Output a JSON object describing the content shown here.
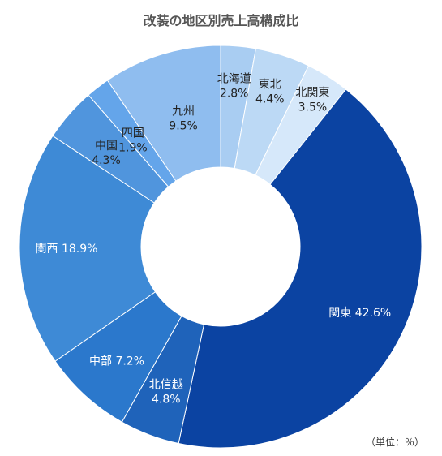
{
  "chart_data": {
    "type": "pie",
    "title": "改装の地区別売上高構成比",
    "unit_note": "（単位：％）",
    "donut": true,
    "slices": [
      {
        "label": "北海道",
        "value": 2.8,
        "value_text": "2.8%",
        "color": "#a9cdf2"
      },
      {
        "label": "東北",
        "value": 4.4,
        "value_text": "4.4%",
        "color": "#bcd9f5"
      },
      {
        "label": "北関東",
        "value": 3.5,
        "value_text": "3.5%",
        "color": "#d6e8fa"
      },
      {
        "label": "関東",
        "value": 42.6,
        "value_text": "42.6%",
        "color": "#0b43a2"
      },
      {
        "label": "北信越",
        "value": 4.8,
        "value_text": "4.8%",
        "color": "#1f63ba"
      },
      {
        "label": "中部",
        "value": 7.2,
        "value_text": "7.2%",
        "color": "#2b78cc"
      },
      {
        "label": "関西",
        "value": 18.9,
        "value_text": "18.9%",
        "color": "#3e8ad6"
      },
      {
        "label": "中国",
        "value": 4.3,
        "value_text": "4.3%",
        "color": "#5095dd"
      },
      {
        "label": "四国",
        "value": 1.9,
        "value_text": "1.9%",
        "color": "#64a5ea"
      },
      {
        "label": "九州",
        "value": 9.5,
        "value_text": "9.5%",
        "color": "#8fbdef"
      }
    ]
  }
}
